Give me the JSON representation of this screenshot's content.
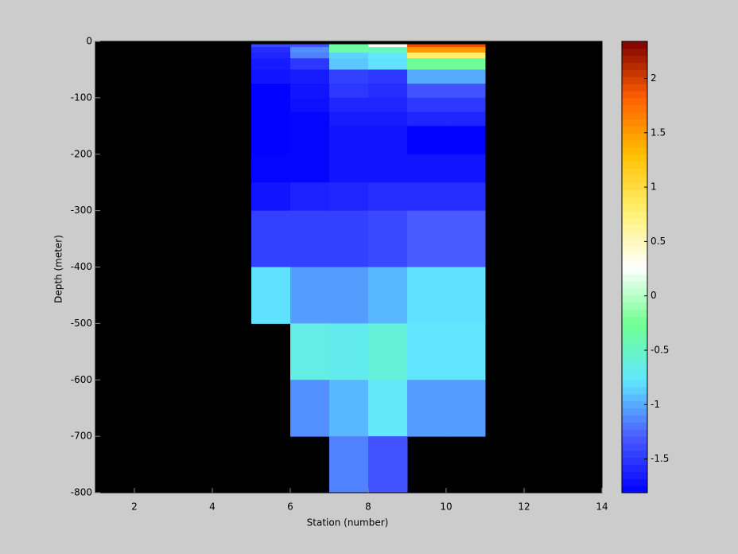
{
  "chart_data": {
    "type": "heatmap",
    "xlabel": "Station (number)",
    "ylabel": "Depth (meter)",
    "x_edges": [
      5,
      6,
      7,
      8,
      9,
      10,
      11
    ],
    "y_edges": [
      -5,
      -10,
      -20,
      -30,
      -50,
      -75,
      -100,
      -125,
      -150,
      -200,
      -250,
      -300,
      -400,
      -500,
      -600,
      -700,
      -800
    ],
    "z": [
      [
        -1.4,
        -1.35,
        -0.35,
        0.3,
        1.9,
        1.9
      ],
      [
        -1.55,
        -1.1,
        -0.35,
        -0.45,
        1.5,
        1.5
      ],
      [
        -1.6,
        -1.15,
        -0.85,
        -0.75,
        0.8,
        0.8
      ],
      [
        -1.65,
        -1.5,
        -0.9,
        -0.8,
        -0.3,
        -0.3
      ],
      [
        -1.7,
        -1.65,
        -1.45,
        -1.5,
        -1.0,
        -1.0
      ],
      [
        -1.8,
        -1.7,
        -1.5,
        -1.55,
        -1.35,
        -1.35
      ],
      [
        -1.8,
        -1.72,
        -1.6,
        -1.6,
        -1.5,
        -1.5
      ],
      [
        -1.8,
        -1.78,
        -1.65,
        -1.65,
        -1.6,
        -1.6
      ],
      [
        -1.8,
        -1.78,
        -1.7,
        -1.7,
        -1.8,
        -1.8
      ],
      [
        -1.78,
        -1.78,
        -1.7,
        -1.7,
        -1.7,
        -1.7
      ],
      [
        -1.7,
        -1.62,
        -1.6,
        -1.55,
        -1.55,
        -1.55
      ],
      [
        -1.45,
        -1.45,
        -1.45,
        -1.4,
        -1.3,
        -1.3
      ],
      [
        -0.8,
        -1.05,
        -1.05,
        -0.95,
        -0.8,
        -0.8
      ],
      [
        null,
        -0.65,
        -0.7,
        -0.6,
        -0.78,
        -0.78
      ],
      [
        null,
        -1.1,
        -0.95,
        -0.75,
        -1.05,
        -1.05
      ],
      [
        null,
        null,
        -1.15,
        -1.35,
        null,
        null
      ]
    ],
    "xlim": [
      1,
      14
    ],
    "xticks": [
      2,
      4,
      6,
      8,
      10,
      12,
      14
    ],
    "ylim": [
      -800,
      0
    ],
    "yticks": [
      -800,
      -700,
      -600,
      -500,
      -400,
      -300,
      -200,
      -100,
      0
    ],
    "clim": [
      -1.81,
      2.34
    ],
    "cticks": [
      -1.5,
      -1,
      -0.5,
      0,
      0.5,
      1,
      1.5,
      2
    ],
    "background": "#000000",
    "colormap": [
      "#0000ff",
      "#4a5cff",
      "#60e8ff",
      "#70ff90",
      "#ffffff",
      "#fff070",
      "#ffc000",
      "#ff6000",
      "#800000"
    ]
  }
}
